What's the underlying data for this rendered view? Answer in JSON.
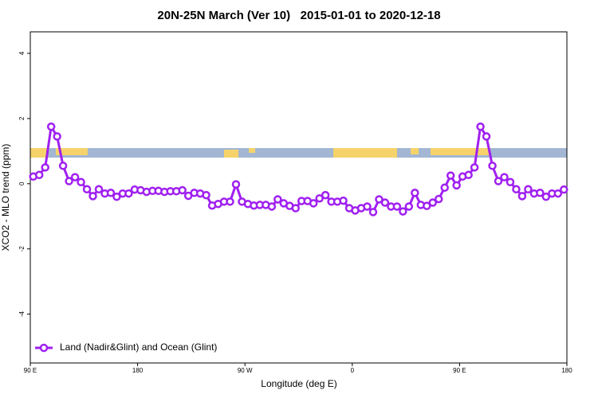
{
  "chart_data": {
    "type": "line",
    "title": "20N-25N March (Ver 10)   2015-01-01 to 2020-12-18",
    "x_label": "Longitude (deg E)",
    "y_label": "XCO2 - MLO trend (ppm)",
    "x": [
      92.5,
      97.5,
      102.5,
      107.5,
      112.5,
      117.5,
      122.5,
      127.5,
      132.5,
      137.5,
      142.5,
      147.5,
      152.5,
      157.5,
      162.5,
      167.5,
      172.5,
      177.5,
      182.5,
      187.5,
      192.5,
      197.5,
      202.5,
      207.5,
      212.5,
      217.5,
      222.5,
      227.5,
      232.5,
      237.5,
      242.5,
      247.5,
      252.5,
      257.5,
      262.5,
      267.5,
      272.5,
      277.5,
      282.5,
      287.5,
      292.5,
      297.5,
      302.5,
      307.5,
      312.5,
      317.5,
      322.5,
      327.5,
      332.5,
      337.5,
      342.5,
      347.5,
      352.5,
      357.5,
      362.5,
      367.5,
      372.5,
      377.5,
      382.5,
      387.5,
      392.5,
      397.5,
      402.5,
      407.5,
      412.5,
      417.5,
      422.5,
      427.5,
      432.5,
      437.5,
      442.5,
      447.5,
      452.5,
      457.5,
      462.5,
      467.5,
      472.5,
      477.5,
      482.5,
      487.5,
      492.5,
      497.5,
      502.5,
      507.5,
      512.5,
      517.5,
      522.5,
      527.5,
      532.5,
      537.5
    ],
    "series": [
      {
        "name": "Land (Nadir&Glint) and Ocean (Glint)",
        "color": "#a020f0",
        "values": [
          0.22,
          0.27,
          0.5,
          1.75,
          1.45,
          0.55,
          0.08,
          0.2,
          0.05,
          -0.17,
          -0.38,
          -0.17,
          -0.3,
          -0.28,
          -0.4,
          -0.3,
          -0.3,
          -0.18,
          -0.2,
          -0.25,
          -0.22,
          -0.22,
          -0.25,
          -0.23,
          -0.23,
          -0.2,
          -0.37,
          -0.28,
          -0.3,
          -0.35,
          -0.67,
          -0.62,
          -0.55,
          -0.55,
          -0.02,
          -0.55,
          -0.62,
          -0.67,
          -0.65,
          -0.65,
          -0.7,
          -0.48,
          -0.6,
          -0.68,
          -0.75,
          -0.53,
          -0.53,
          -0.6,
          -0.45,
          -0.35,
          -0.55,
          -0.55,
          -0.52,
          -0.75,
          -0.82,
          -0.75,
          -0.7,
          -0.87,
          -0.48,
          -0.58,
          -0.7,
          -0.7,
          -0.85,
          -0.7,
          -0.28,
          -0.65,
          -0.68,
          -0.58,
          -0.47,
          -0.12,
          0.25,
          -0.05,
          0.22,
          0.27,
          0.5,
          1.75,
          1.45,
          0.55,
          0.08,
          0.2,
          0.05,
          -0.17,
          -0.38,
          -0.17,
          -0.3,
          -0.28,
          -0.4,
          -0.3,
          -0.3,
          -0.18
        ]
      }
    ],
    "xlim": [
      90,
      540
    ],
    "xticks": [
      {
        "value": 90,
        "label": "90 E"
      },
      180,
      {
        "value": 270,
        "label": "90 W"
      },
      {
        "value": 360,
        "label": "0"
      },
      {
        "value": 450,
        "label": "90 E"
      },
      {
        "value": 540,
        "label": "180"
      }
    ],
    "ylim": [
      -5.5,
      4.66
    ],
    "yticks": [
      -4,
      -2,
      0,
      2,
      4
    ],
    "legend": "bottom-left"
  }
}
